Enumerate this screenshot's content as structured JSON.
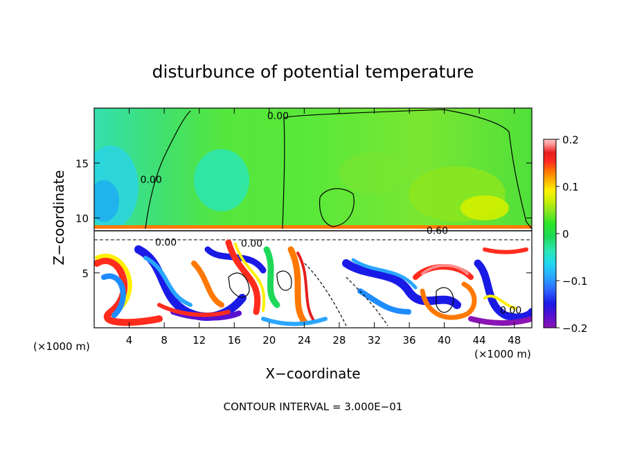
{
  "chart_data": {
    "type": "heatmap",
    "title": "disturbunce of potential temperature",
    "xlabel": "X−coordinate",
    "ylabel": "Z−coordinate",
    "x_unit_left": "(×1000 m)",
    "x_unit_right": "(×1000 m)",
    "x_ticks": [
      "4",
      "8",
      "12",
      "16",
      "20",
      "24",
      "28",
      "32",
      "36",
      "40",
      "44",
      "48"
    ],
    "x_tick_values": [
      4,
      8,
      12,
      16,
      20,
      24,
      28,
      32,
      36,
      40,
      44,
      48
    ],
    "y_ticks": [
      "5",
      "10",
      "15"
    ],
    "y_tick_values": [
      5,
      10,
      15
    ],
    "xlim": [
      0,
      50
    ],
    "ylim": [
      0,
      20
    ],
    "colorbar": {
      "ticks": [
        "0.2",
        "0.1",
        "0",
        "−0.1",
        "−0.2"
      ],
      "tick_values": [
        0.2,
        0.1,
        0,
        -0.1,
        -0.2
      ],
      "range": [
        -0.2,
        0.2
      ],
      "colors": [
        "#8a14b4",
        "#5a0fd0",
        "#1a1ae6",
        "#2c66ff",
        "#2aa6ff",
        "#1ed8f0",
        "#2ce6b4",
        "#1ed85a",
        "#28e628",
        "#8ce61e",
        "#d2f000",
        "#fff000",
        "#ffb400",
        "#ff7800",
        "#ff2c1e",
        "#e61e1e",
        "#ff8c8c",
        "#ffc8c8"
      ]
    },
    "contour_labels": [
      {
        "text": "0.00",
        "x": 21,
        "y": 19.3
      },
      {
        "text": "0.00",
        "x": 6.5,
        "y": 13.5
      },
      {
        "text": "0.60",
        "x": 39.2,
        "y": 8.85
      },
      {
        "text": "0.00",
        "x": 8.2,
        "y": 7.8
      },
      {
        "text": "0.00",
        "x": 18.0,
        "y": 7.7
      },
      {
        "text": "0.00",
        "x": 47.6,
        "y": 1.6
      }
    ],
    "footnote": "CONTOUR INTERVAL = 3.000E−01"
  }
}
